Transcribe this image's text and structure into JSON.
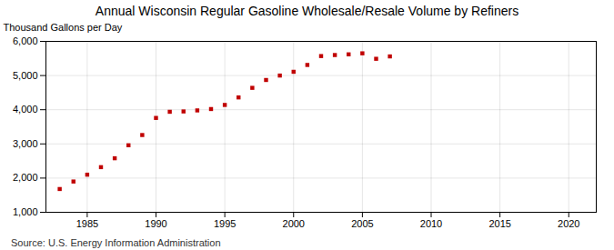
{
  "chart_data": {
    "type": "scatter",
    "title": "Annual Wisconsin Regular Gasoline Wholesale/Resale Volume by Refiners",
    "ylabel": "Thousand Gallons per Day",
    "source": "Source: U.S. Energy Information Administration",
    "x": [
      1983,
      1984,
      1985,
      1986,
      1987,
      1988,
      1989,
      1990,
      1991,
      1992,
      1993,
      1994,
      1995,
      1996,
      1997,
      1998,
      1999,
      2000,
      2001,
      2002,
      2003,
      2004,
      2005,
      2006,
      2007
    ],
    "values": [
      1680,
      1900,
      2100,
      2320,
      2580,
      2960,
      3260,
      3760,
      3940,
      3950,
      3980,
      4020,
      4140,
      4360,
      4640,
      4870,
      5000,
      5110,
      5310,
      5570,
      5600,
      5620,
      5650,
      5490,
      5560
    ],
    "color": "#c00000",
    "marker": "square",
    "xlim": [
      1982,
      2022
    ],
    "ylim": [
      1000,
      6000
    ],
    "xticks": [
      1985,
      1990,
      1995,
      2000,
      2005,
      2010,
      2015,
      2020
    ],
    "yticks": [
      {
        "value": 1000,
        "label": "1,000"
      },
      {
        "value": 2000,
        "label": "2,000"
      },
      {
        "value": 3000,
        "label": "3,000"
      },
      {
        "value": 4000,
        "label": "4,000"
      },
      {
        "value": 5000,
        "label": "5,000"
      },
      {
        "value": 6000,
        "label": "6,000"
      }
    ],
    "grid": true
  }
}
